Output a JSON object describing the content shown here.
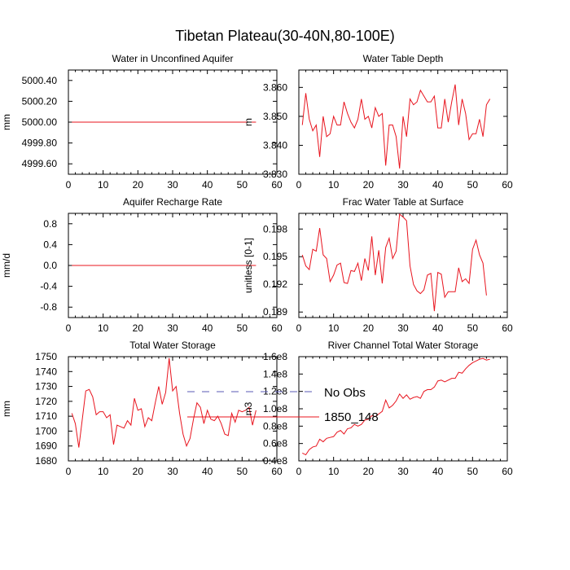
{
  "figure": {
    "title": "Tibetan Plateau(30-40N,80-100E)",
    "legend": [
      {
        "label": "No Obs",
        "color": "#5a5ab4",
        "dash": "dashed"
      },
      {
        "label": "1850_148",
        "color": "#e8141e",
        "dash": "solid"
      }
    ]
  },
  "chart_data": [
    {
      "type": "line",
      "title": "Water in Unconfined Aquifer",
      "xlabel": "",
      "ylabel": "mm",
      "xlim": [
        0,
        60
      ],
      "ylim": [
        4999.5,
        5000.5
      ],
      "xticks": [
        0,
        10,
        20,
        30,
        40,
        50,
        60
      ],
      "yticks": [
        4999.6,
        4999.8,
        5000.0,
        5000.2,
        5000.4
      ],
      "ytick_labels": [
        "4999.60",
        "4999.80",
        "5000.00",
        "5000.20",
        "5000.40"
      ],
      "series": [
        {
          "name": "1850_148",
          "x_start": 1,
          "values": [
            5000,
            5000,
            5000,
            5000,
            5000,
            5000,
            5000,
            5000,
            5000,
            5000,
            5000,
            5000,
            5000,
            5000,
            5000,
            5000,
            5000,
            5000,
            5000,
            5000,
            5000,
            5000,
            5000,
            5000,
            5000,
            5000,
            5000,
            5000,
            5000,
            5000,
            5000,
            5000,
            5000,
            5000,
            5000,
            5000,
            5000,
            5000,
            5000,
            5000,
            5000,
            5000,
            5000,
            5000,
            5000,
            5000,
            5000,
            5000,
            5000,
            5000,
            5000,
            5000,
            5000,
            5000
          ]
        }
      ]
    },
    {
      "type": "line",
      "title": "Water Table Depth",
      "xlabel": "",
      "ylabel": "m",
      "xlim": [
        0,
        60
      ],
      "ylim": [
        3.83,
        3.866
      ],
      "xticks": [
        0,
        10,
        20,
        30,
        40,
        50,
        60
      ],
      "yticks": [
        3.83,
        3.84,
        3.85,
        3.86
      ],
      "ytick_labels": [
        "3.830",
        "3.840",
        "3.850",
        "3.860"
      ],
      "series": [
        {
          "name": "1850_148",
          "x_start": 1,
          "values": [
            3.847,
            3.858,
            3.849,
            3.845,
            3.847,
            3.836,
            3.85,
            3.843,
            3.844,
            3.85,
            3.847,
            3.847,
            3.855,
            3.851,
            3.848,
            3.846,
            3.849,
            3.856,
            3.849,
            3.85,
            3.846,
            3.853,
            3.85,
            3.851,
            3.833,
            3.847,
            3.847,
            3.843,
            3.832,
            3.85,
            3.843,
            3.856,
            3.854,
            3.855,
            3.859,
            3.857,
            3.855,
            3.855,
            3.857,
            3.846,
            3.846,
            3.856,
            3.848,
            3.855,
            3.861,
            3.847,
            3.856,
            3.851,
            3.842,
            3.844,
            3.844,
            3.849,
            3.843,
            3.854,
            3.856
          ]
        }
      ]
    },
    {
      "type": "line",
      "title": "Aquifer Recharge Rate",
      "xlabel": "",
      "ylabel": "mm/d",
      "xlim": [
        0,
        60
      ],
      "ylim": [
        -1.0,
        1.0
      ],
      "xticks": [
        0,
        10,
        20,
        30,
        40,
        50,
        60
      ],
      "yticks": [
        -0.8,
        -0.4,
        0.0,
        0.4,
        0.8
      ],
      "ytick_labels": [
        "-0.8",
        "-0.4",
        "0.0",
        "0.4",
        "0.8"
      ],
      "series": [
        {
          "name": "1850_148",
          "x_start": 1,
          "values": [
            0,
            0,
            0,
            0,
            0,
            0,
            0,
            0,
            0,
            0,
            0,
            0,
            0,
            0,
            0,
            0,
            0,
            0,
            0,
            0,
            0,
            0,
            0,
            0,
            0,
            0,
            0,
            0,
            0,
            0,
            0,
            0,
            0,
            0,
            0,
            0,
            0,
            0,
            0,
            0,
            0,
            0,
            0,
            0,
            0,
            0,
            0,
            0,
            0,
            0,
            0,
            0,
            0,
            0
          ]
        }
      ]
    },
    {
      "type": "line",
      "title": "Frac Water Table at Surface",
      "xlabel": "",
      "ylabel": "unitless [0-1]",
      "xlim": [
        0,
        60
      ],
      "ylim": [
        0.1884,
        0.1997
      ],
      "xticks": [
        0,
        10,
        20,
        30,
        40,
        50,
        60
      ],
      "yticks": [
        0.189,
        0.192,
        0.195,
        0.198
      ],
      "ytick_labels": [
        "0.189",
        "0.192",
        "0.195",
        "0.198"
      ],
      "series": [
        {
          "name": "1850_148",
          "x_start": 1,
          "values": [
            0.1952,
            0.194,
            0.1936,
            0.1958,
            0.1956,
            0.1981,
            0.1952,
            0.1948,
            0.1923,
            0.193,
            0.1941,
            0.1943,
            0.1922,
            0.1921,
            0.1935,
            0.1934,
            0.1943,
            0.1924,
            0.1948,
            0.1935,
            0.1972,
            0.193,
            0.1957,
            0.1921,
            0.196,
            0.197,
            0.1948,
            0.1956,
            0.1996,
            0.1993,
            0.1989,
            0.194,
            0.192,
            0.1913,
            0.191,
            0.1914,
            0.193,
            0.1932,
            0.1891,
            0.1933,
            0.1931,
            0.1906,
            0.1912,
            0.1912,
            0.1912,
            0.1938,
            0.1923,
            0.1926,
            0.1921,
            0.1958,
            0.1968,
            0.1952,
            0.1943,
            0.1908
          ]
        }
      ]
    },
    {
      "type": "line",
      "title": "Total Water Storage",
      "xlabel": "",
      "ylabel": "mm",
      "xlim": [
        0,
        60
      ],
      "ylim": [
        1680,
        1750
      ],
      "xticks": [
        0,
        10,
        20,
        30,
        40,
        50,
        60
      ],
      "yticks": [
        1680,
        1690,
        1700,
        1710,
        1720,
        1730,
        1740,
        1750
      ],
      "ytick_labels": [
        "1680",
        "1690",
        "1700",
        "1710",
        "1720",
        "1730",
        "1740",
        "1750"
      ],
      "series": [
        {
          "name": "1850_148",
          "x_start": 1,
          "values": [
            1712,
            1705,
            1689,
            1708,
            1727,
            1728,
            1723,
            1711,
            1713,
            1713,
            1709,
            1711,
            1691,
            1704,
            1703,
            1702,
            1707,
            1704,
            1722,
            1714,
            1715,
            1703,
            1709,
            1707,
            1719,
            1730,
            1718,
            1726,
            1749,
            1727,
            1730,
            1712,
            1698,
            1690,
            1695,
            1708,
            1719,
            1716,
            1705,
            1714,
            1708,
            1707,
            1710,
            1705,
            1698,
            1697,
            1712,
            1706,
            1714,
            1713,
            1714,
            1716,
            1704,
            1714
          ]
        }
      ]
    },
    {
      "type": "line",
      "title": "River Channel Total Water Storage",
      "xlabel": "",
      "ylabel": "m3",
      "xlim": [
        0,
        60
      ],
      "ylim": [
        40000000.0,
        160000000.0
      ],
      "xticks": [
        0,
        10,
        20,
        30,
        40,
        50,
        60
      ],
      "yticks": [
        40000000.0,
        60000000.0,
        80000000.0,
        100000000.0,
        120000000.0,
        140000000.0,
        160000000.0
      ],
      "ytick_labels": [
        "0.4e8",
        "0.6e8",
        "0.8e8",
        "1.0e8",
        "1.2e8",
        "1.4e8",
        "1.6e8"
      ],
      "series": [
        {
          "name": "1850_148",
          "x_start": 1,
          "values": [
            49000000.0,
            47000000.0,
            53000000.0,
            56000000.0,
            57000000.0,
            65000000.0,
            62000000.0,
            66000000.0,
            67000000.0,
            68000000.0,
            73000000.0,
            75000000.0,
            71000000.0,
            77000000.0,
            78000000.0,
            82000000.0,
            80000000.0,
            82000000.0,
            87000000.0,
            88000000.0,
            92000000.0,
            91000000.0,
            94000000.0,
            97000000.0,
            110000000.0,
            101000000.0,
            104000000.0,
            109000000.0,
            117000000.0,
            112000000.0,
            116000000.0,
            111000000.0,
            113000000.0,
            114000000.0,
            112000000.0,
            120000000.0,
            122000000.0,
            122000000.0,
            125000000.0,
            132000000.0,
            133000000.0,
            131000000.0,
            133000000.0,
            135000000.0,
            135000000.0,
            142000000.0,
            141000000.0,
            146000000.0,
            150000000.0,
            153000000.0,
            155000000.0,
            157000000.0,
            158000000.0,
            156000000.0,
            157000000.0
          ]
        }
      ]
    }
  ]
}
